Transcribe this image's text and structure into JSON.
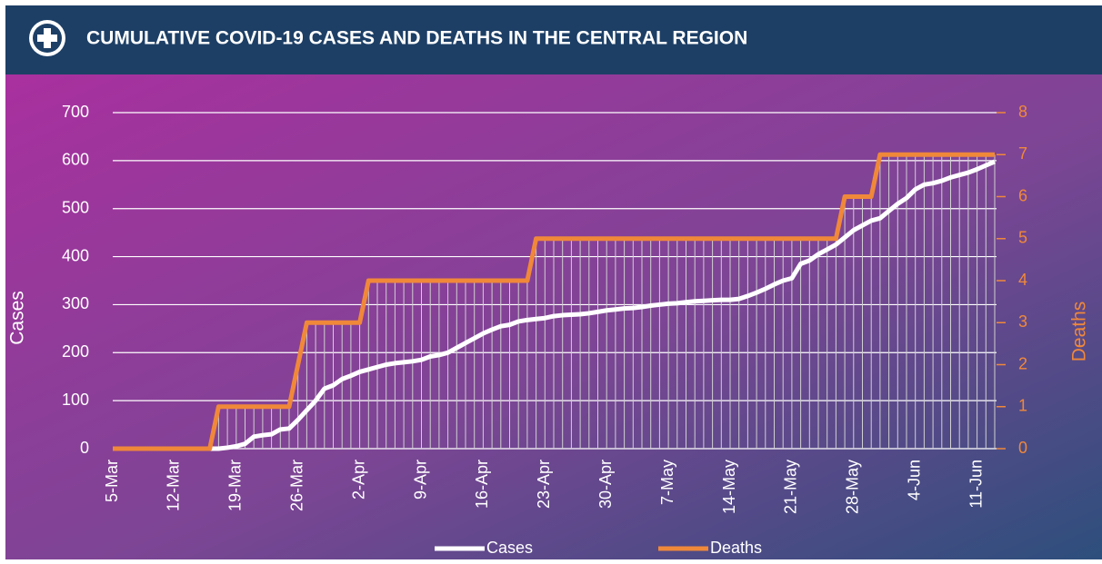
{
  "chart_data": {
    "type": "line",
    "title": "CUMULATIVE COVID-19 CASES AND DEATHS IN THE CENTRAL REGION",
    "ylabel": "Cases",
    "y2label": "Deaths",
    "categories": [
      "5-Mar",
      null,
      null,
      null,
      null,
      null,
      null,
      "12-Mar",
      null,
      null,
      null,
      null,
      null,
      null,
      "19-Mar",
      null,
      null,
      null,
      null,
      null,
      null,
      "26-Mar",
      null,
      null,
      null,
      null,
      null,
      null,
      "2-Apr",
      null,
      null,
      null,
      null,
      null,
      null,
      "9-Apr",
      null,
      null,
      null,
      null,
      null,
      null,
      "16-Apr",
      null,
      null,
      null,
      null,
      null,
      null,
      "23-Apr",
      null,
      null,
      null,
      null,
      null,
      null,
      "30-Apr",
      null,
      null,
      null,
      null,
      null,
      null,
      "7-May",
      null,
      null,
      null,
      null,
      null,
      null,
      "14-May",
      null,
      null,
      null,
      null,
      null,
      null,
      "21-May",
      null,
      null,
      null,
      null,
      null,
      null,
      "28-May",
      null,
      null,
      null,
      null,
      null,
      null,
      "4-Jun",
      null,
      null,
      null,
      null,
      null,
      null,
      "11-Jun",
      null,
      null
    ],
    "series": [
      {
        "name": "Cases",
        "color": "#ffffff",
        "values": [
          0,
          0,
          0,
          0,
          0,
          0,
          0,
          0,
          0,
          0,
          0,
          0,
          0,
          2,
          5,
          10,
          25,
          28,
          30,
          40,
          42,
          60,
          80,
          100,
          125,
          132,
          145,
          152,
          160,
          165,
          170,
          175,
          178,
          180,
          182,
          185,
          192,
          195,
          200,
          210,
          220,
          230,
          240,
          248,
          255,
          258,
          265,
          268,
          270,
          272,
          276,
          278,
          279,
          280,
          282,
          285,
          288,
          290,
          292,
          293,
          295,
          298,
          300,
          302,
          303,
          305,
          307,
          308,
          309,
          310,
          310,
          312,
          318,
          325,
          333,
          342,
          350,
          355,
          385,
          392,
          405,
          415,
          425,
          440,
          455,
          465,
          475,
          480,
          495,
          510,
          522,
          540,
          550,
          553,
          558,
          565,
          570,
          575,
          582,
          590,
          598
        ]
      },
      {
        "name": "Deaths",
        "color": "#f0883a",
        "axis": "y2",
        "values": [
          0,
          0,
          0,
          0,
          0,
          0,
          0,
          0,
          0,
          0,
          0,
          0,
          1,
          1,
          1,
          1,
          1,
          1,
          1,
          1,
          1,
          2,
          3,
          3,
          3,
          3,
          3,
          3,
          3,
          4,
          4,
          4,
          4,
          4,
          4,
          4,
          4,
          4,
          4,
          4,
          4,
          4,
          4,
          4,
          4,
          4,
          4,
          4,
          5,
          5,
          5,
          5,
          5,
          5,
          5,
          5,
          5,
          5,
          5,
          5,
          5,
          5,
          5,
          5,
          5,
          5,
          5,
          5,
          5,
          5,
          5,
          5,
          5,
          5,
          5,
          5,
          5,
          5,
          5,
          5,
          5,
          5,
          5,
          6,
          6,
          6,
          6,
          7,
          7,
          7,
          7,
          7,
          7,
          7,
          7,
          7,
          7,
          7,
          7,
          7,
          7
        ]
      }
    ],
    "ylim": [
      0,
      700
    ],
    "yticks": [
      0,
      100,
      200,
      300,
      400,
      500,
      600,
      700
    ],
    "y2lim": [
      0,
      8
    ],
    "y2ticks": [
      0,
      1,
      2,
      3,
      4,
      5,
      6,
      7,
      8
    ],
    "grid": true,
    "legend": "bottom"
  }
}
